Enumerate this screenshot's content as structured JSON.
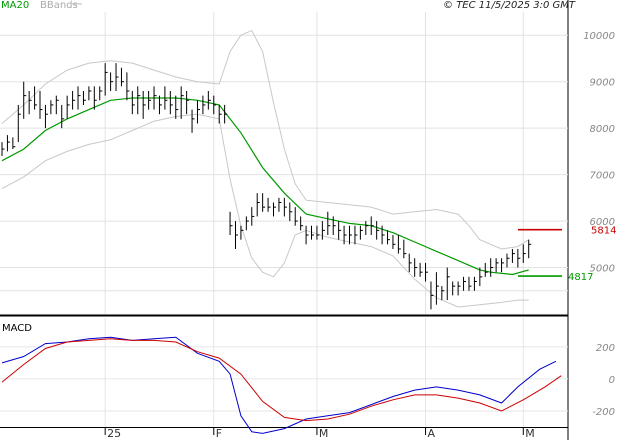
{
  "chart_data": {
    "type": "line",
    "copyright": "© TEC 11/5/2025 3:0 GMT",
    "legend": [
      {
        "label": "MA20",
        "color": "#009900"
      },
      {
        "label": "BBands",
        "color": "#bbbbbb"
      }
    ],
    "price_panel": {
      "ylim": [
        4000,
        10500
      ],
      "yticks": [
        5000,
        6000,
        7000,
        8000,
        9000,
        10000
      ],
      "ytick_labels": [
        "5000",
        "6000",
        "7000",
        "8000",
        "9000",
        "10000"
      ],
      "x_index_range": [
        0,
        100
      ],
      "ohlc_bars": [
        [
          0,
          7700,
          7400,
          7550
        ],
        [
          1,
          7850,
          7500,
          7700
        ],
        [
          2,
          7800,
          7550,
          7600
        ],
        [
          3,
          8500,
          7700,
          8300
        ],
        [
          4,
          9000,
          8200,
          8700
        ],
        [
          5,
          8800,
          8300,
          8600
        ],
        [
          6,
          8900,
          8400,
          8500
        ],
        [
          7,
          8800,
          8200,
          8400
        ],
        [
          8,
          8500,
          8000,
          8300
        ],
        [
          9,
          8600,
          8300,
          8500
        ],
        [
          10,
          8700,
          8300,
          8600
        ],
        [
          11,
          8500,
          8000,
          8200
        ],
        [
          12,
          8700,
          8200,
          8500
        ],
        [
          13,
          8800,
          8400,
          8600
        ],
        [
          14,
          8900,
          8400,
          8700
        ],
        [
          15,
          8800,
          8500,
          8600
        ],
        [
          16,
          8900,
          8600,
          8800
        ],
        [
          17,
          8900,
          8400,
          8600
        ],
        [
          18,
          8900,
          8600,
          8800
        ],
        [
          19,
          9400,
          8700,
          9200
        ],
        [
          20,
          9200,
          8800,
          9000
        ],
        [
          21,
          9400,
          8800,
          9100
        ],
        [
          22,
          9300,
          8900,
          9000
        ],
        [
          23,
          9200,
          8600,
          8800
        ],
        [
          24,
          8800,
          8300,
          8500
        ],
        [
          25,
          8900,
          8300,
          8700
        ],
        [
          26,
          8800,
          8200,
          8500
        ],
        [
          27,
          8800,
          8400,
          8600
        ],
        [
          28,
          8900,
          8400,
          8700
        ],
        [
          29,
          8700,
          8300,
          8500
        ],
        [
          30,
          8900,
          8400,
          8600
        ],
        [
          31,
          8800,
          8300,
          8500
        ],
        [
          32,
          8700,
          8200,
          8400
        ],
        [
          33,
          8900,
          8200,
          8700
        ],
        [
          34,
          8800,
          8300,
          8600
        ],
        [
          35,
          8400,
          7900,
          8200
        ],
        [
          36,
          8600,
          8100,
          8400
        ],
        [
          37,
          8700,
          8300,
          8500
        ],
        [
          38,
          8800,
          8400,
          8600
        ],
        [
          39,
          8700,
          8300,
          8500
        ],
        [
          40,
          8500,
          8100,
          8300
        ],
        [
          41,
          8500,
          8100,
          8300
        ],
        [
          42,
          6200,
          5700,
          5900
        ],
        [
          43,
          6000,
          5400,
          5700
        ],
        [
          44,
          5900,
          5600,
          5800
        ],
        [
          45,
          6100,
          5800,
          6000
        ],
        [
          46,
          6300,
          5900,
          6100
        ],
        [
          47,
          6600,
          6100,
          6400
        ],
        [
          48,
          6600,
          6200,
          6300
        ],
        [
          49,
          6500,
          6200,
          6300
        ],
        [
          50,
          6400,
          6100,
          6300
        ],
        [
          51,
          6500,
          6200,
          6400
        ],
        [
          52,
          6500,
          6100,
          6300
        ],
        [
          53,
          6400,
          6000,
          6200
        ],
        [
          54,
          6300,
          5900,
          6000
        ],
        [
          55,
          6100,
          5800,
          5900
        ],
        [
          56,
          5900,
          5500,
          5700
        ],
        [
          57,
          5900,
          5600,
          5700
        ],
        [
          58,
          5900,
          5600,
          5700
        ],
        [
          59,
          6000,
          5600,
          5800
        ],
        [
          60,
          6200,
          5700,
          5900
        ],
        [
          61,
          6100,
          5700,
          5900
        ],
        [
          62,
          6000,
          5600,
          5800
        ],
        [
          63,
          5900,
          5500,
          5700
        ],
        [
          64,
          5900,
          5500,
          5700
        ],
        [
          65,
          5900,
          5500,
          5700
        ],
        [
          66,
          5900,
          5600,
          5800
        ],
        [
          67,
          6000,
          5700,
          5900
        ],
        [
          68,
          6100,
          5700,
          5900
        ],
        [
          69,
          6000,
          5600,
          5800
        ],
        [
          70,
          5900,
          5500,
          5700
        ],
        [
          71,
          5800,
          5500,
          5600
        ],
        [
          72,
          5700,
          5400,
          5500
        ],
        [
          73,
          5700,
          5300,
          5400
        ],
        [
          74,
          5600,
          5200,
          5300
        ],
        [
          75,
          5300,
          4900,
          5100
        ],
        [
          76,
          5200,
          4800,
          5000
        ],
        [
          77,
          5100,
          4800,
          4900
        ],
        [
          78,
          5100,
          4700,
          4900
        ],
        [
          79,
          4700,
          4100,
          4400
        ],
        [
          80,
          4900,
          4200,
          4600
        ],
        [
          81,
          4600,
          4300,
          4500
        ],
        [
          82,
          5000,
          4300,
          4800
        ],
        [
          83,
          4700,
          4400,
          4600
        ],
        [
          84,
          4700,
          4400,
          4600
        ],
        [
          85,
          4800,
          4500,
          4700
        ],
        [
          86,
          4800,
          4500,
          4600
        ],
        [
          87,
          4800,
          4500,
          4700
        ],
        [
          88,
          5000,
          4600,
          4800
        ],
        [
          89,
          5100,
          4800,
          4900
        ],
        [
          90,
          5200,
          4800,
          5000
        ],
        [
          91,
          5200,
          4900,
          5100
        ],
        [
          92,
          5200,
          4900,
          5100
        ],
        [
          93,
          5300,
          5000,
          5200
        ],
        [
          94,
          5400,
          5100,
          5300
        ],
        [
          95,
          5400,
          5000,
          5200
        ],
        [
          96,
          5500,
          5100,
          5300
        ],
        [
          97,
          5600,
          5200,
          5500
        ]
      ],
      "ma20": [
        [
          0,
          7300
        ],
        [
          4,
          7550
        ],
        [
          8,
          7950
        ],
        [
          12,
          8200
        ],
        [
          16,
          8400
        ],
        [
          20,
          8600
        ],
        [
          24,
          8650
        ],
        [
          28,
          8650
        ],
        [
          32,
          8650
        ],
        [
          36,
          8600
        ],
        [
          40,
          8500
        ],
        [
          44,
          7900
        ],
        [
          48,
          7150
        ],
        [
          52,
          6600
        ],
        [
          56,
          6150
        ],
        [
          60,
          6050
        ],
        [
          64,
          5950
        ],
        [
          68,
          5900
        ],
        [
          72,
          5750
        ],
        [
          76,
          5550
        ],
        [
          80,
          5350
        ],
        [
          84,
          5150
        ],
        [
          88,
          4950
        ],
        [
          90,
          4900
        ],
        [
          94,
          4850
        ],
        [
          97,
          4950
        ]
      ],
      "bb_upper": [
        [
          0,
          8100
        ],
        [
          4,
          8500
        ],
        [
          8,
          8950
        ],
        [
          12,
          9250
        ],
        [
          16,
          9400
        ],
        [
          20,
          9450
        ],
        [
          24,
          9400
        ],
        [
          28,
          9250
        ],
        [
          32,
          9100
        ],
        [
          36,
          9000
        ],
        [
          40,
          8950
        ],
        [
          42,
          9650
        ],
        [
          44,
          10000
        ],
        [
          46,
          10100
        ],
        [
          48,
          9650
        ],
        [
          50,
          8550
        ],
        [
          52,
          7550
        ],
        [
          54,
          6800
        ],
        [
          56,
          6450
        ],
        [
          60,
          6400
        ],
        [
          64,
          6350
        ],
        [
          68,
          6300
        ],
        [
          72,
          6150
        ],
        [
          76,
          6200
        ],
        [
          80,
          6250
        ],
        [
          84,
          6150
        ],
        [
          86,
          5900
        ],
        [
          88,
          5600
        ],
        [
          92,
          5400
        ],
        [
          95,
          5450
        ],
        [
          97,
          5600
        ]
      ],
      "bb_lower": [
        [
          0,
          6700
        ],
        [
          4,
          6950
        ],
        [
          8,
          7300
        ],
        [
          12,
          7500
        ],
        [
          16,
          7650
        ],
        [
          20,
          7750
        ],
        [
          24,
          7950
        ],
        [
          28,
          8150
        ],
        [
          32,
          8250
        ],
        [
          36,
          8300
        ],
        [
          40,
          8200
        ],
        [
          42,
          6900
        ],
        [
          44,
          5900
        ],
        [
          46,
          5200
        ],
        [
          48,
          4900
        ],
        [
          50,
          4800
        ],
        [
          52,
          5100
        ],
        [
          54,
          5700
        ],
        [
          56,
          5800
        ],
        [
          60,
          5650
        ],
        [
          64,
          5550
        ],
        [
          68,
          5450
        ],
        [
          72,
          5250
        ],
        [
          76,
          4750
        ],
        [
          80,
          4350
        ],
        [
          84,
          4150
        ],
        [
          88,
          4200
        ],
        [
          92,
          4250
        ],
        [
          95,
          4300
        ],
        [
          97,
          4300
        ]
      ],
      "levels": [
        {
          "label": "5814",
          "value": 5814,
          "color": "#cc0000"
        },
        {
          "label": "4817",
          "value": 4817,
          "color": "#009900"
        }
      ]
    },
    "macd_panel": {
      "title": "MACD",
      "ylim": [
        -300,
        380
      ],
      "yticks": [
        200,
        0,
        -200
      ],
      "ytick_labels": [
        "200",
        "0",
        "-200"
      ],
      "series": [
        {
          "color": "#0000cc",
          "points": [
            [
              0,
              100
            ],
            [
              4,
              140
            ],
            [
              8,
              220
            ],
            [
              12,
              230
            ],
            [
              16,
              250
            ],
            [
              20,
              260
            ],
            [
              24,
              240
            ],
            [
              28,
              250
            ],
            [
              32,
              260
            ],
            [
              36,
              160
            ],
            [
              40,
              110
            ],
            [
              42,
              30
            ],
            [
              44,
              -230
            ],
            [
              46,
              -330
            ],
            [
              48,
              -340
            ],
            [
              52,
              -310
            ],
            [
              56,
              -250
            ],
            [
              60,
              -230
            ],
            [
              64,
              -210
            ],
            [
              68,
              -160
            ],
            [
              72,
              -110
            ],
            [
              76,
              -70
            ],
            [
              80,
              -50
            ],
            [
              84,
              -70
            ],
            [
              88,
              -100
            ],
            [
              92,
              -150
            ],
            [
              95,
              -50
            ],
            [
              99,
              60
            ],
            [
              102,
              110
            ]
          ]
        },
        {
          "color": "#cc0000",
          "points": [
            [
              0,
              -20
            ],
            [
              4,
              90
            ],
            [
              8,
              190
            ],
            [
              12,
              230
            ],
            [
              16,
              240
            ],
            [
              20,
              250
            ],
            [
              24,
              240
            ],
            [
              28,
              240
            ],
            [
              32,
              230
            ],
            [
              36,
              170
            ],
            [
              40,
              130
            ],
            [
              44,
              30
            ],
            [
              48,
              -140
            ],
            [
              52,
              -240
            ],
            [
              56,
              -260
            ],
            [
              60,
              -250
            ],
            [
              64,
              -220
            ],
            [
              68,
              -170
            ],
            [
              72,
              -130
            ],
            [
              76,
              -100
            ],
            [
              80,
              -100
            ],
            [
              84,
              -120
            ],
            [
              88,
              -150
            ],
            [
              92,
              -200
            ],
            [
              96,
              -130
            ],
            [
              100,
              -50
            ],
            [
              103,
              20
            ]
          ]
        }
      ]
    },
    "x_ticks": [
      {
        "label": "25",
        "index": 19
      },
      {
        "label": "F",
        "index": 39
      },
      {
        "label": "M",
        "index": 58
      },
      {
        "label": "A",
        "index": 78
      },
      {
        "label": "M",
        "index": 96
      }
    ]
  }
}
